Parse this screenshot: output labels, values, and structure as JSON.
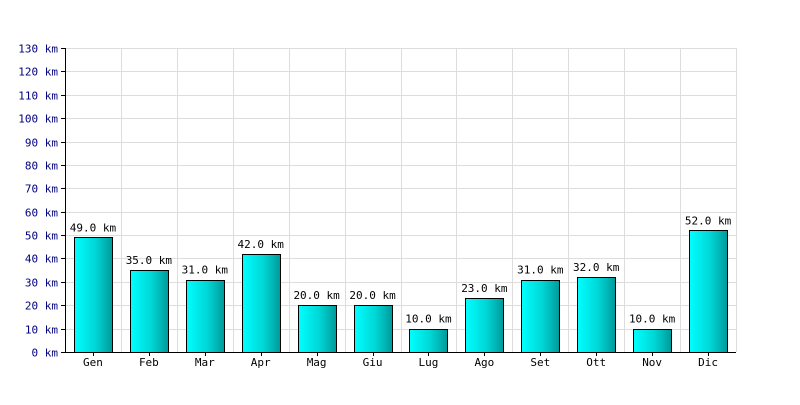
{
  "chart_data": {
    "type": "bar",
    "categories": [
      "Gen",
      "Feb",
      "Mar",
      "Apr",
      "Mag",
      "Giu",
      "Lug",
      "Ago",
      "Set",
      "Ott",
      "Nov",
      "Dic"
    ],
    "values": [
      49.0,
      35.0,
      31.0,
      42.0,
      20.0,
      20.0,
      10.0,
      23.0,
      31.0,
      32.0,
      10.0,
      52.0
    ],
    "data_labels": [
      "49.0 km",
      "35.0 km",
      "31.0 km",
      "42.0 km",
      "20.0 km",
      "20.0 km",
      "10.0 km",
      "23.0 km",
      "31.0 km",
      "32.0 km",
      "10.0 km",
      "52.0 km"
    ],
    "y_tick_labels": [
      "0 km",
      "10 km",
      "20 km",
      "30 km",
      "40 km",
      "50 km",
      "60 km",
      "70 km",
      "80 km",
      "90 km",
      "100 km",
      "110 km",
      "120 km",
      "130 km"
    ],
    "y_ticks": [
      0,
      10,
      20,
      30,
      40,
      50,
      60,
      70,
      80,
      90,
      100,
      110,
      120,
      130
    ],
    "ylim": [
      0,
      130
    ],
    "title": "",
    "xlabel": "",
    "ylabel": "",
    "grid": true,
    "legend": "none",
    "colors": {
      "bar_fill_light": "#00ffff",
      "bar_fill_dark": "#009999",
      "grid": "#dddddd",
      "axis": "#000000",
      "y_tick_text": "#000080"
    }
  }
}
